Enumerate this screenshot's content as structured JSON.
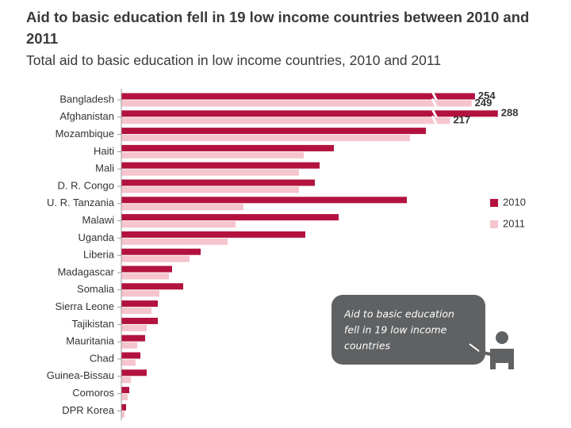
{
  "chart_data": {
    "type": "bar",
    "orientation": "horizontal",
    "title": "Aid to basic education fell in 19 low income countries between 2010 and 2011",
    "subtitle": "Total aid to basic education in low income countries, 2010 and 2011",
    "categories": [
      "Bangladesh",
      "Afghanistan",
      "Mozambique",
      "Haiti",
      "Mali",
      "D. R. Congo",
      "U. R. Tanzania",
      "Malawi",
      "Uganda",
      "Liberia",
      "Madagascar",
      "Somalia",
      "Sierra Leone",
      "Tajikistan",
      "Mauritania",
      "Chad",
      "Guinea-Bissau",
      "Comoros",
      "DPR Korea"
    ],
    "series": [
      {
        "name": "2010",
        "color": "#b3123e",
        "values": [
          254,
          288,
          192,
          134,
          125,
          122,
          180,
          137,
          116,
          50,
          32,
          39,
          23,
          23,
          15,
          12,
          16,
          5,
          3
        ],
        "value_labels": [
          "254",
          "288",
          null,
          null,
          null,
          null,
          null,
          null,
          null,
          null,
          null,
          null,
          null,
          null,
          null,
          null,
          null,
          null,
          null
        ]
      },
      {
        "name": "2011",
        "color": "#f5c4cd",
        "values": [
          249,
          217,
          182,
          115,
          112,
          112,
          77,
          72,
          67,
          43,
          30,
          24,
          19,
          16,
          10,
          9,
          6,
          4,
          2
        ],
        "value_labels": [
          "249",
          "217",
          null,
          null,
          null,
          null,
          null,
          null,
          null,
          null,
          null,
          null,
          null,
          null,
          null,
          null,
          null,
          null,
          null
        ]
      }
    ],
    "legend": "right",
    "callout": [
      "Aid to basic education",
      "fell in 19 low income",
      "countries"
    ]
  }
}
